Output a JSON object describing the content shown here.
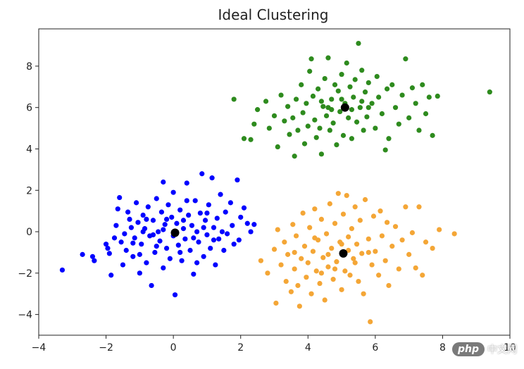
{
  "chart_data": {
    "type": "scatter",
    "title": "Ideal Clustering",
    "xlabel": "",
    "ylabel": "",
    "xlim": [
      -4,
      10
    ],
    "ylim": [
      -5,
      9.8
    ],
    "x_ticks": [
      -4,
      -2,
      0,
      2,
      4,
      6,
      8,
      10
    ],
    "y_ticks": [
      -4,
      -2,
      0,
      2,
      4,
      6,
      8
    ],
    "grid": false,
    "clusters": [
      {
        "color": "#0000ff",
        "center": [
          0.05,
          -0.05
        ],
        "points": [
          [
            -3.3,
            -1.85
          ],
          [
            -2.7,
            -1.1
          ],
          [
            -2.4,
            -1.2
          ],
          [
            -2.35,
            -1.4
          ],
          [
            -2.0,
            -0.6
          ],
          [
            -1.95,
            -0.8
          ],
          [
            -1.9,
            -1.05
          ],
          [
            -1.85,
            -2.1
          ],
          [
            -1.65,
            1.1
          ],
          [
            -1.6,
            1.65
          ],
          [
            -1.7,
            0.3
          ],
          [
            -1.55,
            -0.5
          ],
          [
            -1.45,
            -0.1
          ],
          [
            -1.5,
            -1.6
          ],
          [
            -1.4,
            -0.9
          ],
          [
            -1.35,
            0.95
          ],
          [
            -1.3,
            0.6
          ],
          [
            -1.25,
            0.2
          ],
          [
            -1.2,
            -1.2
          ],
          [
            -1.15,
            -0.3
          ],
          [
            -1.1,
            1.4
          ],
          [
            -1.05,
            0.45
          ],
          [
            -1.0,
            -2.0
          ],
          [
            -0.95,
            -0.6
          ],
          [
            -0.9,
            0.8
          ],
          [
            -0.85,
            0.15
          ],
          [
            -0.8,
            -1.5
          ],
          [
            -0.75,
            1.2
          ],
          [
            -0.7,
            -0.2
          ],
          [
            -0.65,
            -2.6
          ],
          [
            -0.6,
            0.55
          ],
          [
            -0.55,
            -1.0
          ],
          [
            -0.5,
            1.6
          ],
          [
            -0.45,
            0.0
          ],
          [
            -0.4,
            -0.45
          ],
          [
            -0.35,
            0.95
          ],
          [
            -0.3,
            -1.75
          ],
          [
            -0.3,
            2.4
          ],
          [
            -0.25,
            0.35
          ],
          [
            -0.2,
            -0.8
          ],
          [
            -0.15,
            1.3
          ],
          [
            -0.1,
            -1.3
          ],
          [
            -0.05,
            0.7
          ],
          [
            0.0,
            -0.2
          ],
          [
            0.0,
            1.9
          ],
          [
            0.05,
            -3.05
          ],
          [
            0.1,
            0.4
          ],
          [
            0.15,
            -0.65
          ],
          [
            0.2,
            1.05
          ],
          [
            0.25,
            -1.4
          ],
          [
            0.3,
            0.15
          ],
          [
            0.35,
            -0.35
          ],
          [
            0.4,
            2.35
          ],
          [
            0.45,
            0.8
          ],
          [
            0.5,
            -0.9
          ],
          [
            0.55,
            0.3
          ],
          [
            0.6,
            -2.05
          ],
          [
            0.65,
            1.5
          ],
          [
            0.7,
            0.0
          ],
          [
            0.75,
            -0.5
          ],
          [
            0.8,
            0.9
          ],
          [
            0.85,
            2.8
          ],
          [
            0.9,
            -1.2
          ],
          [
            0.95,
            0.55
          ],
          [
            1.0,
            -0.15
          ],
          [
            1.05,
            1.3
          ],
          [
            1.1,
            -0.8
          ],
          [
            1.15,
            2.6
          ],
          [
            1.2,
            0.2
          ],
          [
            1.25,
            -1.6
          ],
          [
            1.3,
            0.65
          ],
          [
            1.35,
            -0.35
          ],
          [
            1.4,
            1.8
          ],
          [
            1.45,
            0.0
          ],
          [
            1.5,
            -0.9
          ],
          [
            1.55,
            0.95
          ],
          [
            1.6,
            -0.1
          ],
          [
            1.7,
            1.4
          ],
          [
            1.75,
            0.3
          ],
          [
            1.8,
            -0.6
          ],
          [
            1.9,
            2.5
          ],
          [
            1.95,
            -0.4
          ],
          [
            2.0,
            0.7
          ],
          [
            2.1,
            1.15
          ],
          [
            2.2,
            0.4
          ],
          [
            2.3,
            0.0
          ],
          [
            2.4,
            0.35
          ],
          [
            -1.75,
            -0.3
          ],
          [
            -1.2,
            -0.55
          ],
          [
            -0.9,
            0.0
          ],
          [
            -0.6,
            -0.15
          ],
          [
            -0.3,
            0.1
          ],
          [
            0.3,
            0.55
          ],
          [
            0.6,
            -0.3
          ],
          [
            0.9,
            0.2
          ],
          [
            1.2,
            -0.4
          ],
          [
            -0.5,
            -0.7
          ],
          [
            0.2,
            -1.0
          ],
          [
            -0.8,
            0.6
          ],
          [
            1.0,
            0.9
          ],
          [
            0.4,
            1.5
          ],
          [
            -1.0,
            -1.1
          ],
          [
            0.7,
            -1.5
          ],
          [
            -0.2,
            0.6
          ]
        ]
      },
      {
        "color": "#f4a636",
        "center": [
          5.05,
          -1.05
        ],
        "points": [
          [
            2.6,
            -1.4
          ],
          [
            2.8,
            -2.0
          ],
          [
            3.0,
            -0.85
          ],
          [
            3.05,
            -3.45
          ],
          [
            3.1,
            0.1
          ],
          [
            3.2,
            -1.6
          ],
          [
            3.3,
            -0.5
          ],
          [
            3.35,
            -2.4
          ],
          [
            3.4,
            -1.1
          ],
          [
            3.5,
            -2.9
          ],
          [
            3.55,
            0.35
          ],
          [
            3.6,
            -1.8
          ],
          [
            3.65,
            -0.2
          ],
          [
            3.7,
            -2.6
          ],
          [
            3.75,
            -3.6
          ],
          [
            3.8,
            -1.3
          ],
          [
            3.85,
            0.9
          ],
          [
            3.9,
            -0.7
          ],
          [
            3.95,
            -2.2
          ],
          [
            4.0,
            -1.5
          ],
          [
            4.05,
            0.2
          ],
          [
            4.1,
            -3.0
          ],
          [
            4.15,
            -0.95
          ],
          [
            4.2,
            1.1
          ],
          [
            4.25,
            -1.9
          ],
          [
            4.3,
            -0.4
          ],
          [
            4.35,
            -2.5
          ],
          [
            4.4,
            0.6
          ],
          [
            4.45,
            -1.25
          ],
          [
            4.5,
            -3.3
          ],
          [
            4.55,
            -0.1
          ],
          [
            4.6,
            -1.7
          ],
          [
            4.65,
            1.35
          ],
          [
            4.7,
            -0.8
          ],
          [
            4.75,
            -2.3
          ],
          [
            4.8,
            0.4
          ],
          [
            4.85,
            -1.45
          ],
          [
            4.9,
            1.85
          ],
          [
            4.95,
            -0.5
          ],
          [
            5.0,
            -2.8
          ],
          [
            5.05,
            0.85
          ],
          [
            5.1,
            -1.9
          ],
          [
            5.15,
            1.75
          ],
          [
            5.2,
            -0.25
          ],
          [
            5.25,
            -2.1
          ],
          [
            5.3,
            0.15
          ],
          [
            5.35,
            -1.3
          ],
          [
            5.4,
            1.2
          ],
          [
            5.45,
            -0.6
          ],
          [
            5.5,
            -2.4
          ],
          [
            5.55,
            0.55
          ],
          [
            5.6,
            -1.05
          ],
          [
            5.65,
            -3.0
          ],
          [
            5.7,
            1.55
          ],
          [
            5.8,
            -0.35
          ],
          [
            5.85,
            -4.35
          ],
          [
            5.9,
            -1.6
          ],
          [
            5.95,
            0.75
          ],
          [
            6.0,
            -0.95
          ],
          [
            6.1,
            -2.1
          ],
          [
            6.15,
            1.0
          ],
          [
            6.2,
            -0.2
          ],
          [
            6.3,
            -1.4
          ],
          [
            6.35,
            0.45
          ],
          [
            6.4,
            -2.6
          ],
          [
            6.5,
            -0.7
          ],
          [
            6.6,
            0.25
          ],
          [
            6.7,
            -1.8
          ],
          [
            6.8,
            -0.4
          ],
          [
            6.9,
            1.2
          ],
          [
            7.0,
            -1.1
          ],
          [
            7.1,
            -0.05
          ],
          [
            7.2,
            -1.75
          ],
          [
            7.3,
            1.2
          ],
          [
            7.4,
            -2.1
          ],
          [
            7.5,
            -0.5
          ],
          [
            7.7,
            -0.8
          ],
          [
            7.9,
            0.1
          ],
          [
            8.35,
            -0.1
          ],
          [
            3.6,
            -1.0
          ],
          [
            4.2,
            -0.3
          ],
          [
            4.6,
            -1.1
          ],
          [
            5.0,
            -0.6
          ],
          [
            5.4,
            -1.5
          ],
          [
            5.8,
            -1.0
          ],
          [
            4.4,
            -2.0
          ],
          [
            4.8,
            -1.8
          ],
          [
            5.2,
            -0.9
          ]
        ]
      },
      {
        "color": "#2e8b1e",
        "center": [
          5.1,
          6.0
        ],
        "points": [
          [
            1.8,
            6.4
          ],
          [
            2.1,
            4.5
          ],
          [
            2.3,
            4.45
          ],
          [
            2.4,
            5.2
          ],
          [
            2.5,
            5.9
          ],
          [
            2.75,
            6.3
          ],
          [
            2.85,
            5.0
          ],
          [
            3.0,
            5.6
          ],
          [
            3.1,
            4.1
          ],
          [
            3.2,
            6.6
          ],
          [
            3.3,
            5.35
          ],
          [
            3.4,
            6.05
          ],
          [
            3.45,
            4.7
          ],
          [
            3.55,
            5.5
          ],
          [
            3.6,
            3.65
          ],
          [
            3.65,
            6.4
          ],
          [
            3.7,
            4.9
          ],
          [
            3.8,
            7.1
          ],
          [
            3.85,
            5.75
          ],
          [
            3.9,
            4.25
          ],
          [
            3.95,
            6.2
          ],
          [
            4.0,
            5.1
          ],
          [
            4.05,
            7.75
          ],
          [
            4.1,
            8.35
          ],
          [
            4.15,
            6.55
          ],
          [
            4.2,
            5.4
          ],
          [
            4.25,
            4.55
          ],
          [
            4.3,
            6.9
          ],
          [
            4.35,
            5.0
          ],
          [
            4.4,
            3.75
          ],
          [
            4.45,
            6.05
          ],
          [
            4.5,
            7.4
          ],
          [
            4.55,
            5.6
          ],
          [
            4.6,
            8.4
          ],
          [
            4.65,
            4.9
          ],
          [
            4.7,
            6.4
          ],
          [
            4.75,
            5.25
          ],
          [
            4.8,
            7.1
          ],
          [
            4.85,
            4.2
          ],
          [
            4.9,
            6.8
          ],
          [
            4.95,
            5.8
          ],
          [
            5.0,
            7.6
          ],
          [
            5.05,
            4.65
          ],
          [
            5.1,
            6.2
          ],
          [
            5.15,
            8.15
          ],
          [
            5.2,
            5.5
          ],
          [
            5.25,
            7.0
          ],
          [
            5.3,
            4.5
          ],
          [
            5.35,
            6.5
          ],
          [
            5.4,
            7.35
          ],
          [
            5.45,
            5.3
          ],
          [
            5.5,
            9.1
          ],
          [
            5.55,
            6.0
          ],
          [
            5.6,
            7.8
          ],
          [
            5.65,
            4.9
          ],
          [
            5.7,
            6.75
          ],
          [
            5.75,
            5.55
          ],
          [
            5.8,
            7.2
          ],
          [
            5.9,
            6.2
          ],
          [
            6.0,
            5.0
          ],
          [
            6.05,
            7.5
          ],
          [
            6.1,
            6.5
          ],
          [
            6.2,
            5.7
          ],
          [
            6.3,
            3.95
          ],
          [
            6.35,
            6.9
          ],
          [
            6.4,
            4.5
          ],
          [
            6.5,
            7.1
          ],
          [
            6.6,
            6.0
          ],
          [
            6.7,
            5.2
          ],
          [
            6.8,
            6.6
          ],
          [
            6.9,
            8.35
          ],
          [
            7.0,
            5.5
          ],
          [
            7.1,
            6.95
          ],
          [
            7.2,
            6.2
          ],
          [
            7.3,
            4.9
          ],
          [
            7.4,
            7.1
          ],
          [
            7.5,
            5.7
          ],
          [
            7.6,
            6.5
          ],
          [
            7.7,
            4.65
          ],
          [
            7.85,
            6.55
          ],
          [
            9.4,
            6.75
          ],
          [
            4.4,
            6.3
          ],
          [
            4.7,
            5.9
          ],
          [
            5.0,
            6.4
          ],
          [
            5.3,
            5.9
          ],
          [
            5.6,
            6.3
          ],
          [
            4.6,
            6.0
          ],
          [
            5.8,
            6.0
          ]
        ]
      }
    ]
  },
  "watermark": {
    "logo": "php",
    "text": "中文网"
  }
}
